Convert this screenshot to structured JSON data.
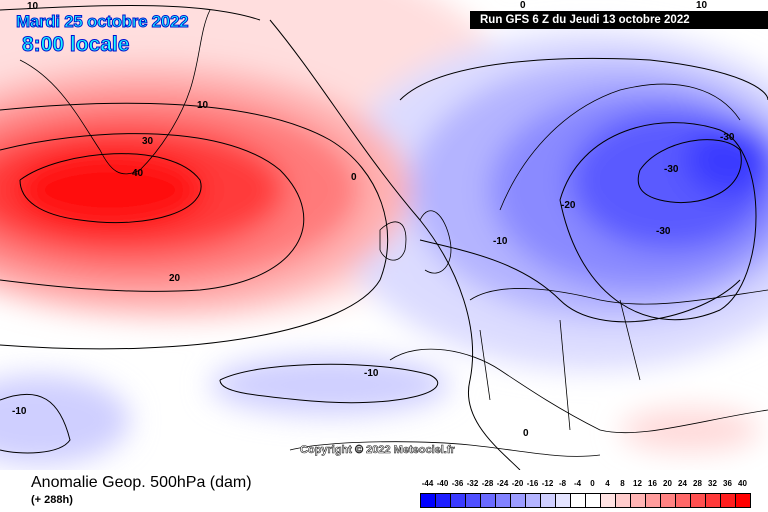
{
  "header": {
    "date": "Mardi 25 octobre 2022",
    "local_time": "8:00 locale",
    "run": "Run GFS 6 Z du Jeudi 13 octobre 2022"
  },
  "map": {
    "copyright": "Copyright © 2022 Meteociel.fr",
    "contour_labels": [
      "10",
      "10",
      "30",
      "40",
      "20",
      "0",
      "-10",
      "-20",
      "-30",
      "-30",
      "-30",
      "-10",
      "-10",
      "0",
      "10",
      "0"
    ]
  },
  "footer": {
    "title": "Anomalie Geop. 500hPa (dam)",
    "forecast_offset": "(+ 288h)"
  },
  "legend": {
    "labels": [
      "-44",
      "-40",
      "-36",
      "-32",
      "-28",
      "-24",
      "-20",
      "-16",
      "-12",
      "-8",
      "-4",
      "0",
      "4",
      "8",
      "12",
      "16",
      "20",
      "24",
      "28",
      "32",
      "36",
      "40"
    ],
    "colors": [
      "#0000ff",
      "#1e1eff",
      "#3a3aff",
      "#5050ff",
      "#6a6aff",
      "#8282ff",
      "#9c9cff",
      "#b4b4ff",
      "#cfcfff",
      "#e4e4ff",
      "#ffffff",
      "#ffffff",
      "#ffe2e2",
      "#ffcccc",
      "#ffb4b4",
      "#ff9c9c",
      "#ff8282",
      "#ff6868",
      "#ff5050",
      "#ff3a3a",
      "#ff1e1e",
      "#ff0000"
    ]
  }
}
